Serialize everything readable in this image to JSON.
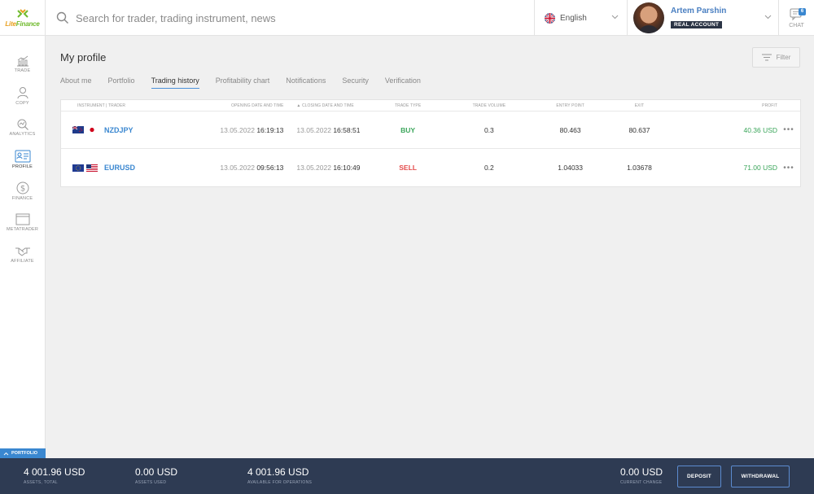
{
  "brand": {
    "logo_text_a": "Lite",
    "logo_text_b": "Finance"
  },
  "search": {
    "placeholder": "Search for trader, trading instrument, news"
  },
  "language": {
    "label": "English"
  },
  "user": {
    "name": "Artem Parshin",
    "account_badge": "REAL ACCOUNT"
  },
  "chat": {
    "label": "CHAT",
    "count": "6"
  },
  "sidebar": {
    "items": [
      {
        "label": "TRADE",
        "icon": "trade-chart-icon"
      },
      {
        "label": "COPY",
        "icon": "copy-user-icon"
      },
      {
        "label": "ANALYTICS",
        "icon": "analytics-icon"
      },
      {
        "label": "PROFILE",
        "icon": "profile-card-icon",
        "active": true
      },
      {
        "label": "FINANCE",
        "icon": "dollar-circle-icon"
      },
      {
        "label": "METATRADER",
        "icon": "window-icon"
      },
      {
        "label": "AFFILIATE",
        "icon": "handshake-icon"
      }
    ]
  },
  "page": {
    "title": "My profile",
    "filter_label": "Filter",
    "tabs": [
      "About me",
      "Portfolio",
      "Trading history",
      "Profitability chart",
      "Notifications",
      "Security",
      "Verification"
    ],
    "active_tab": "Trading history"
  },
  "table": {
    "headers": {
      "instrument": "INSTRUMENT | TRADER",
      "opening": "OPENING DATE AND TIME",
      "closing": "▲ CLOSING DATE AND TIME",
      "type": "TRADE TYPE",
      "volume": "TRADE VOLUME",
      "entry": "ENTRY POINT",
      "exit": "EXIT",
      "profit": "PROFIT"
    },
    "rows": [
      {
        "symbol": "NZDJPY",
        "flags": [
          "nz-flag-icon",
          "jp-flag-icon"
        ],
        "open_date": "13.05.2022",
        "open_time": "16:19:13",
        "close_date": "13.05.2022",
        "close_time": "16:58:51",
        "type": "BUY",
        "volume": "0.3",
        "entry": "80.463",
        "exit": "80.637",
        "profit": "40.36 USD",
        "more": "•••"
      },
      {
        "symbol": "EURUSD",
        "flags": [
          "eu-flag-icon",
          "us-flag-icon"
        ],
        "open_date": "13.05.2022",
        "open_time": "09:56:13",
        "close_date": "13.05.2022",
        "close_time": "16:10:49",
        "type": "SELL",
        "volume": "0.2",
        "entry": "1.04033",
        "exit": "1.03678",
        "profit": "71.00 USD",
        "more": "•••"
      }
    ]
  },
  "portfolio": {
    "tab_label": "PORTFOLIO",
    "stats": [
      {
        "value": "4 001.96 USD",
        "label": "ASSETS, TOTAL"
      },
      {
        "value": "0.00 USD",
        "label": "ASSETS USED"
      },
      {
        "value": "4 001.96 USD",
        "label": "AVAILABLE FOR OPERATIONS"
      },
      {
        "value": "0.00 USD",
        "label": "CURRENT CHANGE"
      }
    ],
    "deposit_label": "DEPOSIT",
    "withdrawal_label": "WITHDRAWAL"
  },
  "colors": {
    "accent": "#3a87d0",
    "buy": "#3aa55a",
    "sell": "#e34b4b",
    "bottom_bar": "#2e3b53"
  }
}
